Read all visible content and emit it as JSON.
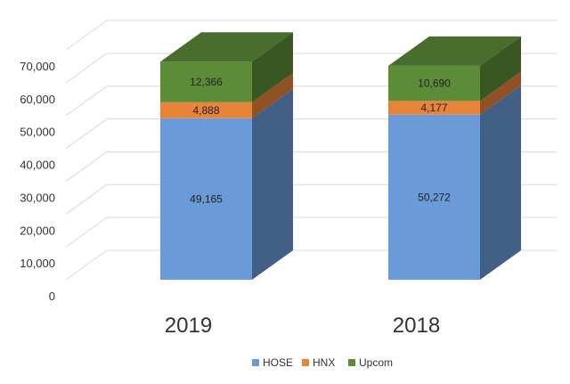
{
  "chart_data": {
    "type": "bar",
    "stacked": true,
    "three_d": true,
    "categories": [
      "2019",
      "2018"
    ],
    "series": [
      {
        "name": "HOSE",
        "values": [
          49165,
          50272
        ],
        "labels": [
          "49,165",
          "50,272"
        ],
        "color": "#6a9bd8"
      },
      {
        "name": "HNX",
        "values": [
          4888,
          4177
        ],
        "labels": [
          "4,888",
          "4,177"
        ],
        "color": "#e8833a"
      },
      {
        "name": "Upcom",
        "values": [
          12366,
          10690
        ],
        "labels": [
          "12,366",
          "10,690"
        ],
        "color": "#5c8c38"
      }
    ],
    "yticks": [
      "0",
      "10,000",
      "20,000",
      "30,000",
      "40,000",
      "50,000",
      "60,000",
      "70,000"
    ],
    "ylim": [
      0,
      70000
    ],
    "grid": true,
    "legend_position": "bottom"
  }
}
